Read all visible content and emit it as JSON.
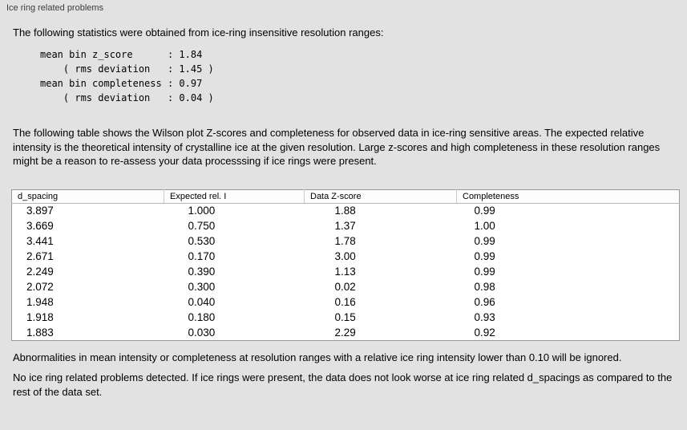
{
  "panel": {
    "title": "Ice ring related problems"
  },
  "intro": "The following statistics were obtained from ice-ring insensitive resolution ranges:",
  "stats_block": "mean bin z_score      : 1.84\n    ( rms deviation   : 1.45 )\nmean bin completeness : 0.97\n    ( rms deviation   : 0.04 )",
  "table_description": "The following table shows the Wilson plot Z-scores and completeness for observed data in ice-ring sensitive areas. The expected relative intensity is the theoretical intensity of crystalline ice at the given resolution. Large z-scores and high completeness in these resolution ranges might be a reason to re-assess your data processsing if ice rings were present.",
  "table": {
    "headers": [
      "d_spacing",
      "Expected rel. I",
      "Data Z-score",
      "Completeness"
    ],
    "rows": [
      [
        "3.897",
        "1.000",
        "1.88",
        "0.99"
      ],
      [
        "3.669",
        "0.750",
        "1.37",
        "1.00"
      ],
      [
        "3.441",
        "0.530",
        "1.78",
        "0.99"
      ],
      [
        "2.671",
        "0.170",
        "3.00",
        "0.99"
      ],
      [
        "2.249",
        "0.390",
        "1.13",
        "0.99"
      ],
      [
        "2.072",
        "0.300",
        "0.02",
        "0.98"
      ],
      [
        "1.948",
        "0.040",
        "0.16",
        "0.96"
      ],
      [
        "1.918",
        "0.180",
        "0.15",
        "0.93"
      ],
      [
        "1.883",
        "0.030",
        "2.29",
        "0.92"
      ]
    ]
  },
  "note_abnormalities": "Abnormalities in mean intensity or completeness at resolution ranges with a relative ice ring intensity lower than 0.10 will be ignored.",
  "note_conclusion": "No ice ring related problems detected. If ice rings were present, the data does not look worse at ice ring related d_spacings as compared to the rest of the data set."
}
